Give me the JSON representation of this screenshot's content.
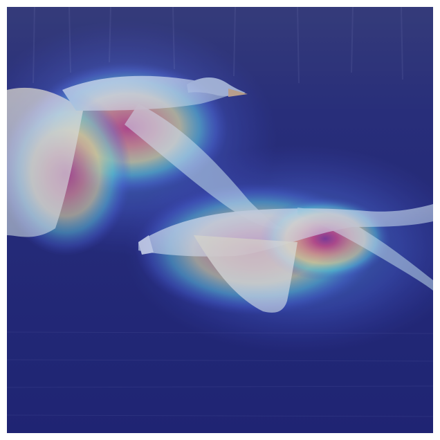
{
  "image": {
    "subject": "",
    "colors": {
      "background_water": "#242a6a",
      "overlay_blue": "#2a2fa8",
      "overlay_cyan": "#3fe0d0",
      "overlay_yellow": "#f4e44a",
      "overlay_orange": "#f08a2a",
      "overlay_red": "#cc2020",
      "overlay_darkred": "#7a1040",
      "goose_body": "#c9d6e6",
      "goose_wing": "#e8e2c8"
    }
  }
}
